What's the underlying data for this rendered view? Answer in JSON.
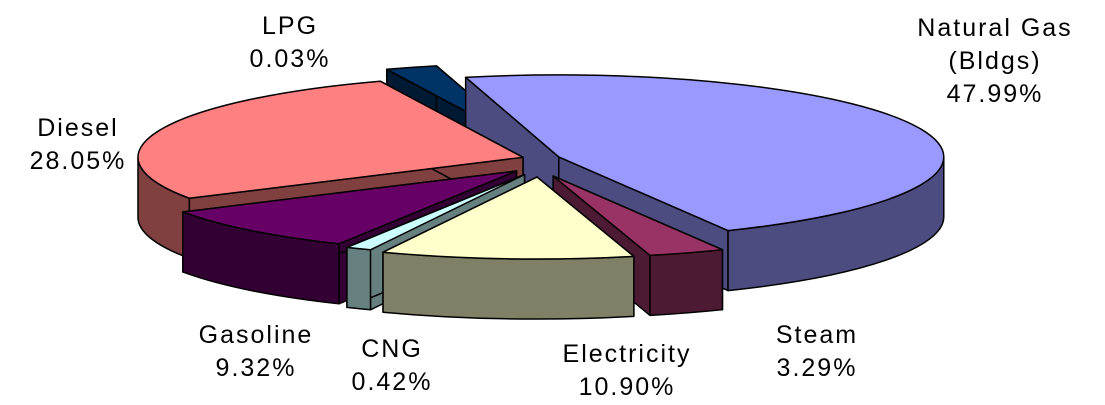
{
  "chart_data": {
    "type": "pie",
    "style": "3d-exploded",
    "title": "",
    "slices": [
      {
        "name": "Natural Gas (Bldgs)",
        "label_lines": [
          "Natural Gas",
          "(Bldgs)"
        ],
        "value": 47.99,
        "value_label": "47.99%",
        "color": "#9999ff",
        "side_color": "#4c4c80"
      },
      {
        "name": "Steam",
        "label_lines": [
          "Steam"
        ],
        "value": 3.29,
        "value_label": "3.29%",
        "color": "#993366",
        "side_color": "#4d1a33"
      },
      {
        "name": "Electricity",
        "label_lines": [
          "Electricity"
        ],
        "value": 10.9,
        "value_label": "10.90%",
        "color": "#ffffcc",
        "side_color": "#808066"
      },
      {
        "name": "CNG",
        "label_lines": [
          "CNG"
        ],
        "value": 0.42,
        "value_label": "0.42%",
        "color": "#ccffff",
        "side_color": "#668080"
      },
      {
        "name": "Gasoline",
        "label_lines": [
          "Gasoline"
        ],
        "value": 9.32,
        "value_label": "9.32%",
        "color": "#660066",
        "side_color": "#330033"
      },
      {
        "name": "Diesel",
        "label_lines": [
          "Diesel"
        ],
        "value": 28.05,
        "value_label": "28.05%",
        "color": "#ff8080",
        "side_color": "#804040"
      },
      {
        "name": "LPG",
        "label_lines": [
          "LPG"
        ],
        "value": 0.03,
        "value_label": "0.03%",
        "color": "#003366",
        "side_color": "#001a33"
      }
    ],
    "legend": "none",
    "data_labels": "outside, category name and percentage"
  }
}
